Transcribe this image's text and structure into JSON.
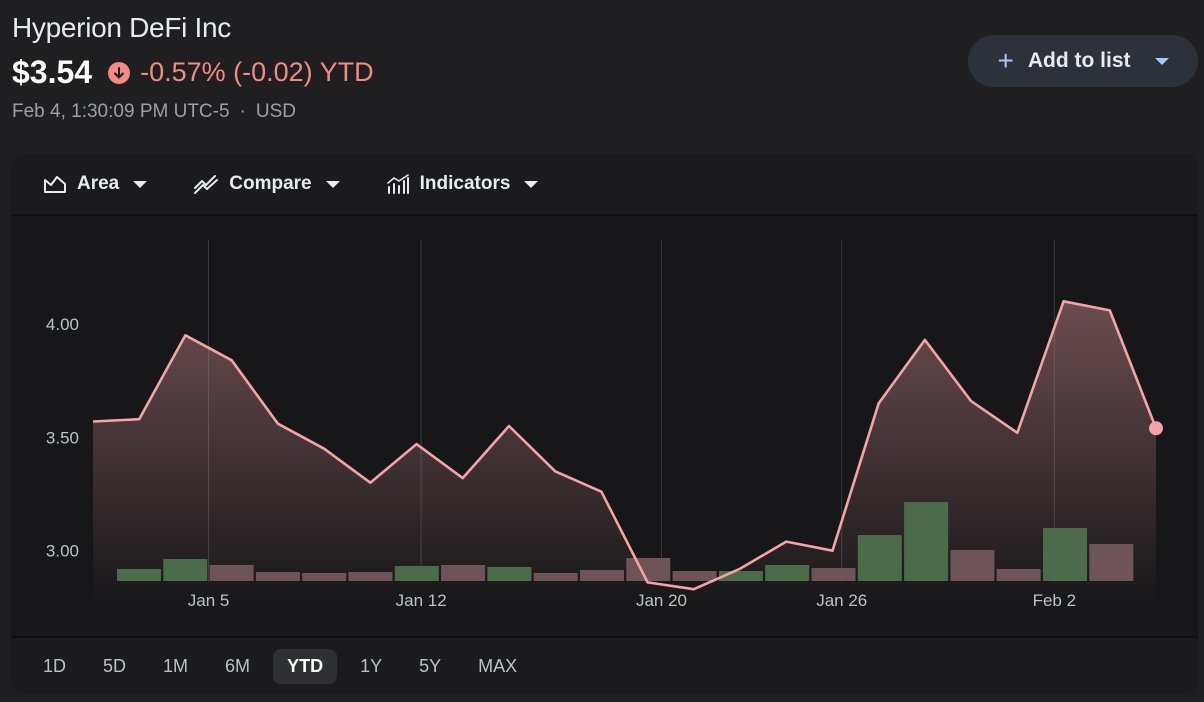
{
  "stock": {
    "name": "Hyperion DeFi Inc",
    "price": "$3.54",
    "change": "-0.57% (-0.02) YTD",
    "timestamp": "Feb 4, 1:30:09 PM UTC-5",
    "separator": "·",
    "currency": "USD"
  },
  "actions": {
    "add_to_list": "Add to list"
  },
  "toolbar": {
    "area": "Area",
    "compare": "Compare",
    "indicators": "Indicators"
  },
  "ranges": [
    "1D",
    "5D",
    "1M",
    "6M",
    "YTD",
    "1Y",
    "5Y",
    "MAX"
  ],
  "active_range": "YTD",
  "colors": {
    "background": "#1f1f22",
    "line": "#f5a3a8",
    "negative": "#f28b82",
    "volume_up": "#4b6b4b",
    "volume_down": "#6e5358",
    "accent": "#a8c7fa"
  },
  "chart_data": {
    "type": "area",
    "y_ticks": [
      "4.00",
      "3.50",
      "3.00"
    ],
    "y_tick_values": [
      4.0,
      3.5,
      3.0
    ],
    "ylim": [
      2.8,
      4.3
    ],
    "x_labels": [
      {
        "label": "Jan 5",
        "index": 2.5
      },
      {
        "label": "Jan 12",
        "index": 7.1
      },
      {
        "label": "Jan 20",
        "index": 12.3
      },
      {
        "label": "Jan 26",
        "index": 16.2
      },
      {
        "label": "Feb 2",
        "index": 20.8
      }
    ],
    "price": [
      3.57,
      3.58,
      3.95,
      3.84,
      3.56,
      3.45,
      3.3,
      3.47,
      3.32,
      3.55,
      3.35,
      3.26,
      2.86,
      2.83,
      2.92,
      3.04,
      3.0,
      3.65,
      3.93,
      3.66,
      3.52,
      4.1,
      4.06,
      3.54
    ],
    "volume": [
      {
        "value": 0.12,
        "up": true
      },
      {
        "value": 0.22,
        "up": true
      },
      {
        "value": 0.16,
        "up": false
      },
      {
        "value": 0.09,
        "up": false
      },
      {
        "value": 0.08,
        "up": false
      },
      {
        "value": 0.09,
        "up": false
      },
      {
        "value": 0.15,
        "up": true
      },
      {
        "value": 0.16,
        "up": false
      },
      {
        "value": 0.14,
        "up": true
      },
      {
        "value": 0.08,
        "up": false
      },
      {
        "value": 0.11,
        "up": false
      },
      {
        "value": 0.23,
        "up": false
      },
      {
        "value": 0.1,
        "up": false
      },
      {
        "value": 0.1,
        "up": true
      },
      {
        "value": 0.16,
        "up": true
      },
      {
        "value": 0.13,
        "up": false
      },
      {
        "value": 0.46,
        "up": true
      },
      {
        "value": 0.79,
        "up": true
      },
      {
        "value": 0.31,
        "up": false
      },
      {
        "value": 0.12,
        "up": false
      },
      {
        "value": 0.53,
        "up": true
      },
      {
        "value": 0.37,
        "up": false
      }
    ]
  }
}
